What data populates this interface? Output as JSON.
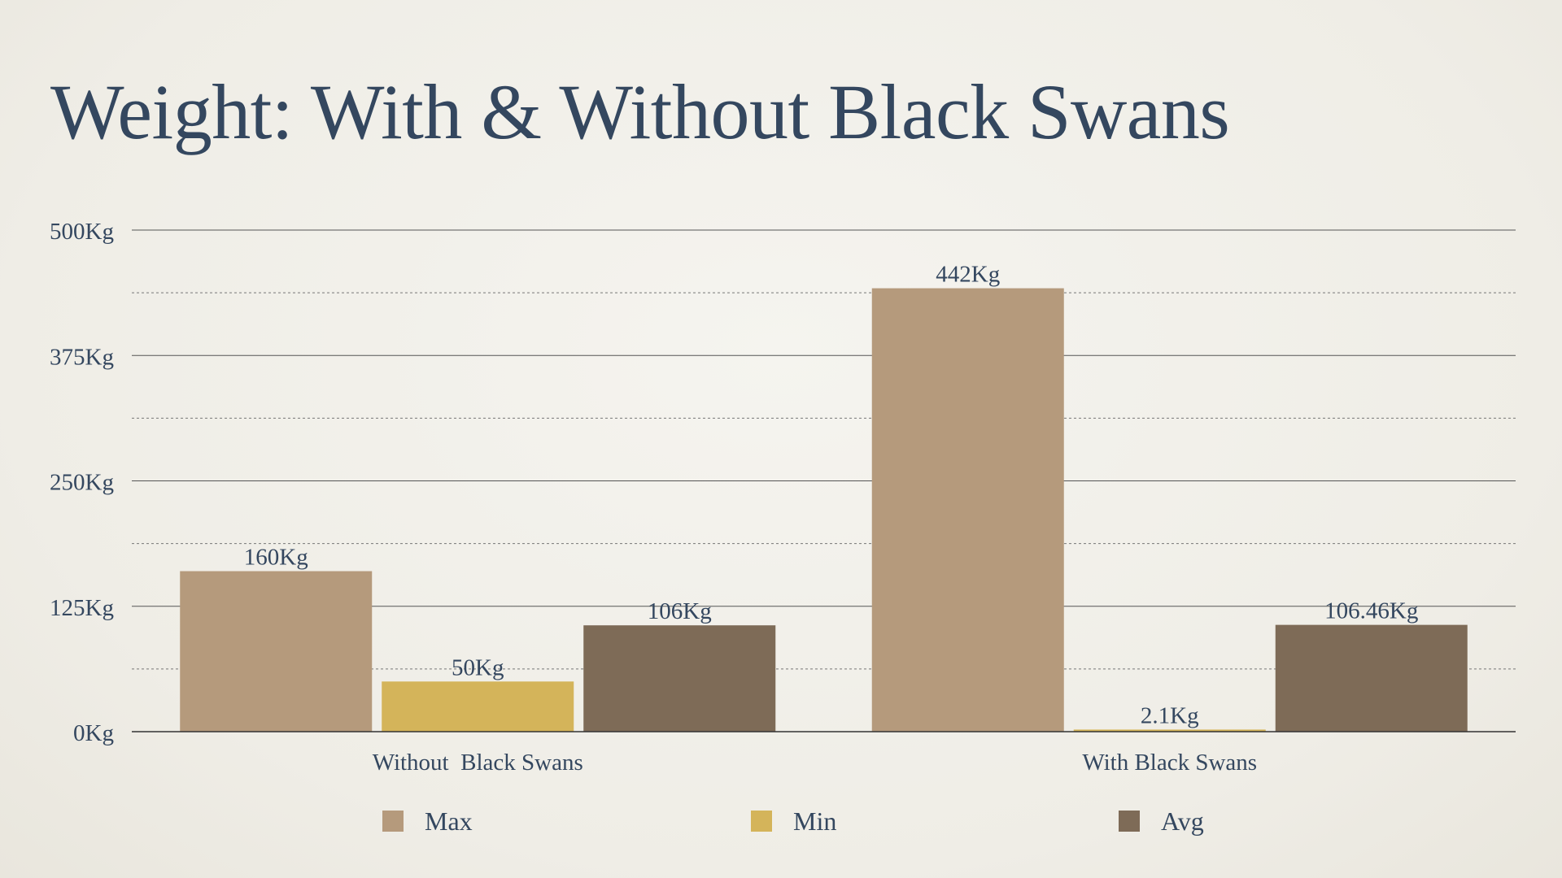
{
  "title": "Weight: With & Without Black Swans",
  "colors": {
    "text": "#34475f",
    "max": "#b59a7c",
    "min": "#d4b45a",
    "avg": "#7e6b57",
    "grid": "#555555"
  },
  "chart_data": {
    "type": "bar",
    "title": "",
    "xlabel": "",
    "ylabel": "",
    "ylim": [
      0,
      500
    ],
    "y_ticks": [
      0,
      125,
      250,
      375,
      500
    ],
    "y_tick_labels": [
      "0Kg",
      "125Kg",
      "250Kg",
      "375Kg",
      "500Kg"
    ],
    "grid": "solid major lines at ticks, dotted minor lines midway",
    "legend_position": "bottom",
    "categories": [
      "Without  Black Swans",
      "With Black Swans"
    ],
    "series": [
      {
        "name": "Max",
        "color": "#b59a7c",
        "values": [
          160,
          442
        ],
        "labels": [
          "160Kg",
          "442Kg"
        ]
      },
      {
        "name": "Min",
        "color": "#d4b45a",
        "values": [
          50,
          2.1
        ],
        "labels": [
          "50Kg",
          "2.1Kg"
        ]
      },
      {
        "name": "Avg",
        "color": "#7e6b57",
        "values": [
          106,
          106.46
        ],
        "labels": [
          "106Kg",
          "106.46Kg"
        ]
      }
    ]
  }
}
